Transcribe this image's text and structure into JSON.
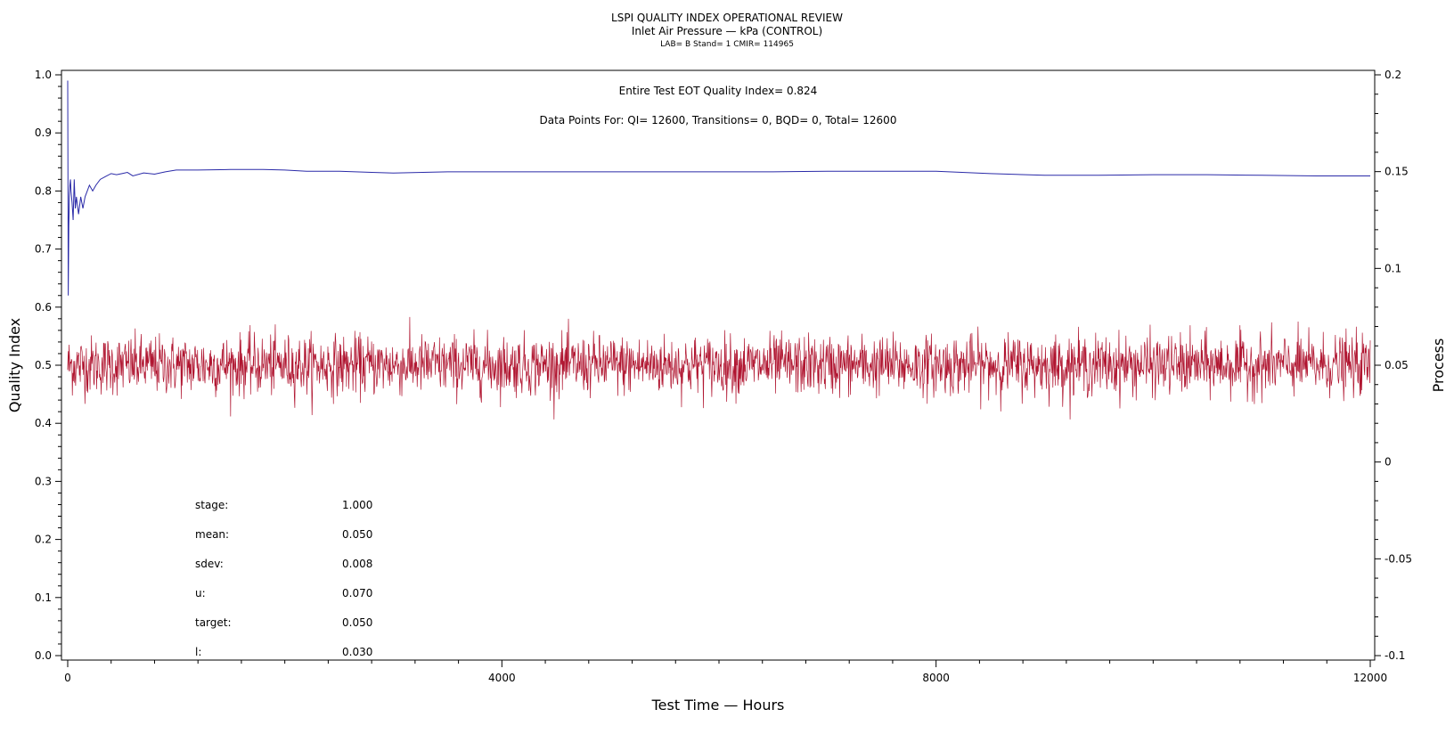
{
  "chart_data": {
    "type": "line",
    "title": "LSPI QUALITY INDEX OPERATIONAL REVIEW",
    "subtitle": "Inlet Air Pressure — kPa (CONTROL)",
    "lab_line": "LAB= B Stand= 1 CMIR= 114965",
    "xlabel": "Test Time — Hours",
    "ylabel_left": "Quality Index",
    "ylabel_right": "Process",
    "xlim": [
      0,
      12000
    ],
    "ylim_left": [
      0.0,
      1.0
    ],
    "ylim_right": [
      -0.1,
      0.2
    ],
    "x_ticks": [
      "0",
      "4000",
      "8000",
      "12000"
    ],
    "x_tick_values": [
      0,
      4000,
      8000,
      12000
    ],
    "left_ticks": [
      "0.0",
      "0.1",
      "0.2",
      "0.3",
      "0.4",
      "0.5",
      "0.6",
      "0.7",
      "0.8",
      "0.9",
      "1.0"
    ],
    "left_tick_values": [
      0.0,
      0.1,
      0.2,
      0.3,
      0.4,
      0.5,
      0.6,
      0.7,
      0.8,
      0.9,
      1.0
    ],
    "right_ticks": [
      "-0.1",
      "-0.05",
      "0",
      "0.05",
      "0.1",
      "0.15",
      "0.2"
    ],
    "right_tick_values": [
      -0.1,
      -0.05,
      0,
      0.05,
      0.1,
      0.15,
      0.2
    ],
    "annotations": {
      "eot": "Entire Test EOT Quality Index=   0.824",
      "points": "Data Points For: QI= 12600, Transitions=     0, BQD=     0, Total= 12600"
    },
    "stats": [
      {
        "label": "stage:",
        "value": "1.000"
      },
      {
        "label": "mean:",
        "value": "0.050"
      },
      {
        "label": "sdev:",
        "value": "0.008"
      },
      {
        "label": "u:",
        "value": "0.070"
      },
      {
        "label": "target:",
        "value": "0.050"
      },
      {
        "label": "l:",
        "value": "0.030"
      }
    ],
    "series": [
      {
        "axis": "left",
        "color": "#2a2aa8",
        "x": [
          0,
          5,
          10,
          15,
          20,
          25,
          30,
          40,
          50,
          60,
          70,
          80,
          100,
          120,
          140,
          160,
          180,
          200,
          230,
          260,
          300,
          350,
          400,
          450,
          500,
          550,
          600,
          700,
          800,
          900,
          1000,
          1200,
          1500,
          1800,
          2000,
          2200,
          2500,
          2800,
          3000,
          3500,
          4000,
          4500,
          5000,
          5500,
          6000,
          6500,
          7000,
          7500,
          8000,
          8500,
          9000,
          9500,
          10000,
          10500,
          11000,
          11500,
          12000
        ],
        "values": [
          0.99,
          0.62,
          0.74,
          0.79,
          0.81,
          0.82,
          0.8,
          0.78,
          0.75,
          0.82,
          0.77,
          0.79,
          0.76,
          0.79,
          0.77,
          0.79,
          0.8,
          0.81,
          0.8,
          0.81,
          0.82,
          0.825,
          0.83,
          0.828,
          0.83,
          0.832,
          0.826,
          0.831,
          0.829,
          0.833,
          0.836,
          0.836,
          0.837,
          0.837,
          0.836,
          0.834,
          0.834,
          0.832,
          0.831,
          0.833,
          0.833,
          0.833,
          0.833,
          0.833,
          0.833,
          0.833,
          0.834,
          0.834,
          0.834,
          0.83,
          0.827,
          0.827,
          0.828,
          0.828,
          0.827,
          0.826,
          0.826
        ]
      },
      {
        "axis": "right",
        "color": "#b01530",
        "x_range": [
          0,
          12000
        ],
        "count": 12600,
        "mean": 0.05,
        "sdev": 0.008,
        "min": 0.022,
        "max": 0.085
      }
    ]
  }
}
